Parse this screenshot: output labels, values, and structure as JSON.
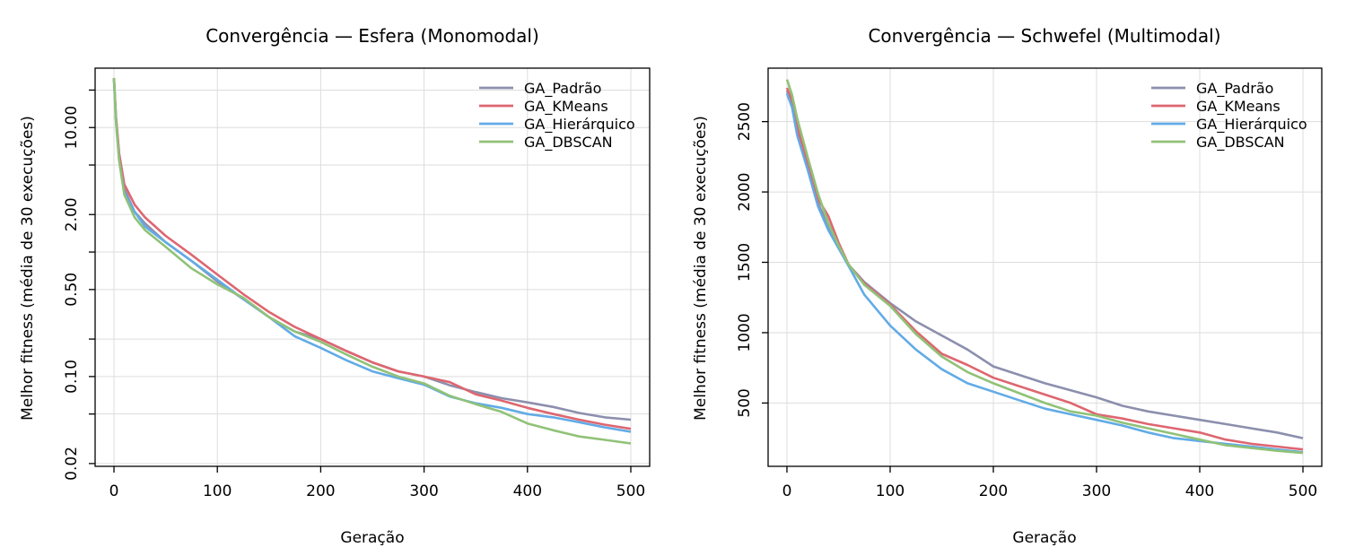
{
  "chart_data": [
    {
      "type": "line",
      "title": "Convergência — Esfera (Monomodal)",
      "xlabel": "Geração",
      "ylabel": "Melhor fitness (média de 30 execuções)",
      "xlim": [
        0,
        500
      ],
      "ylim": [
        0.019,
        30
      ],
      "y_scale": "log",
      "x_ticks": [
        0,
        100,
        200,
        300,
        400,
        500
      ],
      "y_ticks": [
        0.02,
        0.05,
        0.1,
        0.2,
        0.5,
        1.0,
        2.0,
        5.0,
        10.0,
        20.0
      ],
      "y_tick_labels": [
        "0.02",
        "",
        "0.10",
        "",
        "0.50",
        "",
        "2.00",
        "",
        "10.00",
        ""
      ],
      "grid": true,
      "legend_position": "top-right",
      "x": [
        0,
        2,
        5,
        10,
        20,
        30,
        50,
        75,
        100,
        125,
        150,
        175,
        200,
        225,
        250,
        275,
        300,
        325,
        350,
        375,
        400,
        425,
        450,
        475,
        500
      ],
      "series": [
        {
          "name": "GA_Padrão",
          "values": [
            25,
            12,
            6,
            3.2,
            2.1,
            1.7,
            1.2,
            0.85,
            0.58,
            0.42,
            0.3,
            0.23,
            0.2,
            0.16,
            0.13,
            0.11,
            0.1,
            0.085,
            0.075,
            0.067,
            0.062,
            0.057,
            0.051,
            0.047,
            0.045
          ]
        },
        {
          "name": "GA_KMeans",
          "values": [
            25,
            12,
            6.2,
            3.5,
            2.4,
            1.9,
            1.35,
            0.95,
            0.66,
            0.46,
            0.33,
            0.25,
            0.2,
            0.16,
            0.13,
            0.11,
            0.1,
            0.09,
            0.072,
            0.064,
            0.056,
            0.05,
            0.045,
            0.041,
            0.038
          ]
        },
        {
          "name": "GA_Hierárquico",
          "values": [
            24,
            11,
            5.5,
            3.0,
            2.1,
            1.6,
            1.2,
            0.85,
            0.6,
            0.42,
            0.3,
            0.21,
            0.17,
            0.135,
            0.11,
            0.097,
            0.086,
            0.069,
            0.061,
            0.056,
            0.05,
            0.047,
            0.043,
            0.039,
            0.036
          ]
        },
        {
          "name": "GA_DBSCAN",
          "values": [
            25,
            11,
            5.4,
            2.9,
            1.9,
            1.5,
            1.1,
            0.74,
            0.55,
            0.43,
            0.3,
            0.23,
            0.19,
            0.15,
            0.12,
            0.1,
            0.088,
            0.07,
            0.06,
            0.052,
            0.042,
            0.037,
            0.033,
            0.031,
            0.029
          ]
        }
      ],
      "colors": [
        "#8c8fad",
        "#de6670",
        "#62abe6",
        "#90c277"
      ]
    },
    {
      "type": "line",
      "title": "Convergência — Schwefel (Multimodal)",
      "xlabel": "Geração",
      "ylabel": "Melhor fitness (média de 30 execuções)",
      "xlim": [
        0,
        500
      ],
      "ylim": [
        50,
        2880
      ],
      "x_ticks": [
        0,
        100,
        200,
        300,
        400,
        500
      ],
      "y_ticks": [
        500,
        1000,
        1500,
        2000,
        2500
      ],
      "y_tick_labels": [
        "500",
        "1000",
        "1500",
        "2000",
        "2500"
      ],
      "grid": true,
      "legend_position": "top-right",
      "x": [
        0,
        5,
        10,
        20,
        30,
        40,
        50,
        60,
        75,
        100,
        125,
        150,
        175,
        200,
        225,
        250,
        275,
        300,
        325,
        350,
        375,
        400,
        425,
        450,
        475,
        500
      ],
      "series": [
        {
          "name": "GA_Padrão",
          "values": [
            2720,
            2620,
            2450,
            2180,
            1920,
            1760,
            1610,
            1480,
            1360,
            1210,
            1080,
            980,
            880,
            760,
            700,
            640,
            590,
            540,
            480,
            440,
            410,
            380,
            350,
            320,
            290,
            250
          ]
        },
        {
          "name": "GA_KMeans",
          "values": [
            2740,
            2650,
            2460,
            2200,
            1950,
            1830,
            1640,
            1480,
            1350,
            1200,
            1010,
            850,
            770,
            680,
            620,
            560,
            500,
            420,
            390,
            350,
            320,
            290,
            240,
            210,
            190,
            170
          ]
        },
        {
          "name": "GA_Hierárquico",
          "values": [
            2700,
            2600,
            2400,
            2160,
            1900,
            1730,
            1600,
            1470,
            1270,
            1050,
            880,
            740,
            640,
            580,
            520,
            460,
            420,
            380,
            340,
            290,
            250,
            230,
            210,
            190,
            170,
            150
          ]
        },
        {
          "name": "GA_DBSCAN",
          "values": [
            2800,
            2690,
            2520,
            2250,
            1990,
            1780,
            1620,
            1480,
            1340,
            1190,
            990,
            830,
            720,
            640,
            570,
            500,
            440,
            410,
            360,
            320,
            280,
            240,
            200,
            180,
            160,
            145
          ]
        }
      ],
      "colors": [
        "#8c8fad",
        "#de6670",
        "#62abe6",
        "#90c277"
      ]
    }
  ]
}
